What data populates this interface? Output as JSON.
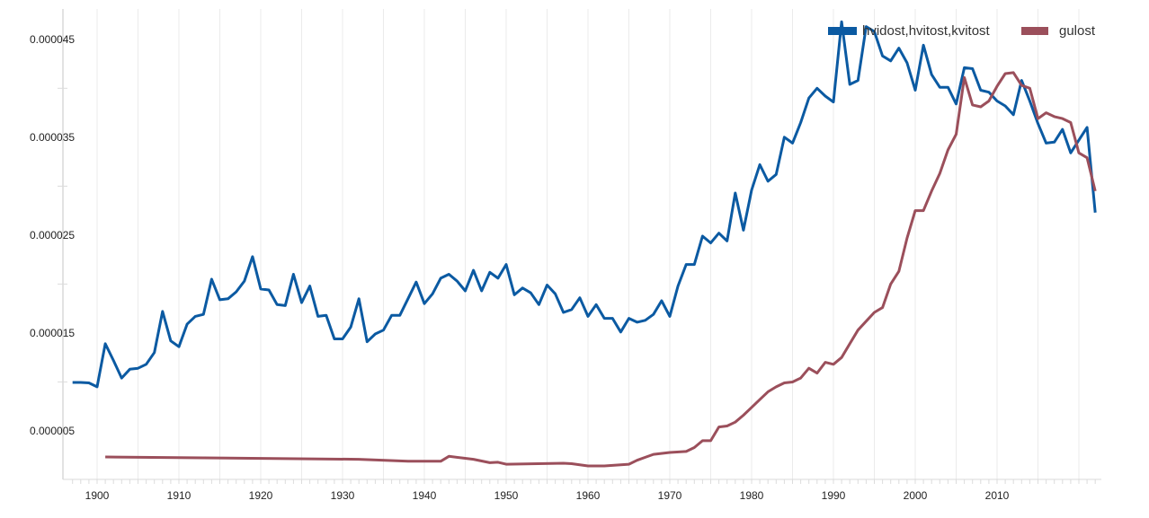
{
  "chart_data": {
    "type": "line",
    "title": "",
    "xlabel": "",
    "ylabel": "",
    "xlim": [
      1897,
      2022
    ],
    "ylim": [
      0,
      4.81e-05
    ],
    "grid": "vertical every 5 years",
    "legend_position": "top-right",
    "y_tick_labels": [
      "0.000005",
      "0.000015",
      "0.000025",
      "0.000035",
      "0.000045"
    ],
    "y_tick_values": [
      5e-06,
      1.5e-05,
      2.5e-05,
      3.5e-05,
      4.5e-05
    ],
    "x_tick_labels": [
      "1900",
      "1910",
      "1920",
      "1930",
      "1940",
      "1950",
      "1960",
      "1970",
      "1980",
      "1990",
      "2000",
      "2010"
    ],
    "x_tick_values": [
      1900,
      1910,
      1920,
      1930,
      1940,
      1950,
      1960,
      1970,
      1980,
      1990,
      2000,
      2010
    ],
    "series": [
      {
        "name": "hvidost,hvitost,kvitost",
        "color": "#0b5aa2",
        "start_year": 1897,
        "values_e6": [
          9.95,
          9.95,
          9.9,
          9.5,
          13.9,
          12.2,
          10.4,
          11.3,
          11.4,
          11.8,
          13.0,
          17.2,
          14.2,
          13.6,
          15.9,
          16.7,
          16.9,
          20.5,
          18.4,
          18.5,
          19.2,
          20.3,
          22.8,
          19.5,
          19.4,
          17.9,
          17.8,
          21.0,
          18.1,
          19.8,
          16.7,
          16.8,
          14.4,
          14.4,
          15.6,
          18.5,
          14.1,
          14.9,
          15.3,
          16.8,
          16.8,
          18.5,
          20.2,
          18.0,
          19.0,
          20.6,
          21.0,
          20.3,
          19.3,
          21.4,
          19.3,
          21.2,
          20.6,
          22.0,
          18.9,
          19.6,
          19.1,
          17.9,
          19.9,
          19.0,
          17.1,
          17.4,
          18.6,
          16.7,
          17.9,
          16.5,
          16.5,
          15.1,
          16.5,
          16.1,
          16.3,
          16.9,
          18.3,
          16.7,
          19.8,
          22.0,
          22.0,
          24.9,
          24.2,
          25.2,
          24.4,
          29.3,
          25.5,
          29.6,
          32.2,
          30.5,
          31.2,
          35.0,
          34.4,
          36.5,
          39.0,
          40.0,
          39.2,
          38.6,
          46.8,
          40.4,
          40.8,
          46.3,
          45.8,
          43.3,
          42.8,
          44.1,
          42.6,
          39.8,
          44.4,
          41.4,
          40.1,
          40.1,
          38.4,
          42.1,
          42.0,
          39.8,
          39.6,
          38.7,
          38.2,
          37.3,
          40.8,
          38.7,
          36.4,
          34.4,
          34.5,
          35.8,
          33.4,
          34.7,
          36.0,
          27.3
        ]
      },
      {
        "name": "gulost",
        "color": "#9b4f5b",
        "points_e6": [
          [
            1901,
            2.34
          ],
          [
            1932,
            2.1
          ],
          [
            1938,
            1.9
          ],
          [
            1942,
            1.9
          ],
          [
            1943,
            2.4
          ],
          [
            1946,
            2.1
          ],
          [
            1948,
            1.75
          ],
          [
            1949,
            1.8
          ],
          [
            1950,
            1.6
          ],
          [
            1957,
            1.7
          ],
          [
            1958,
            1.65
          ],
          [
            1960,
            1.42
          ],
          [
            1962,
            1.42
          ],
          [
            1965,
            1.6
          ],
          [
            1966,
            2.0
          ],
          [
            1967,
            2.3
          ],
          [
            1968,
            2.6
          ],
          [
            1970,
            2.8
          ],
          [
            1972,
            2.9
          ],
          [
            1973,
            3.3
          ],
          [
            1974,
            4.0
          ],
          [
            1975,
            4.0
          ],
          [
            1976,
            5.4
          ],
          [
            1977,
            5.5
          ],
          [
            1978,
            5.9
          ],
          [
            1979,
            6.6
          ],
          [
            1980,
            7.4
          ],
          [
            1981,
            8.2
          ],
          [
            1982,
            9.0
          ],
          [
            1983,
            9.5
          ],
          [
            1984,
            9.9
          ],
          [
            1985,
            10.0
          ],
          [
            1986,
            10.4
          ],
          [
            1987,
            11.4
          ],
          [
            1988,
            10.9
          ],
          [
            1989,
            12.0
          ],
          [
            1990,
            11.8
          ],
          [
            1991,
            12.5
          ],
          [
            1992,
            13.9
          ],
          [
            1993,
            15.3
          ],
          [
            1994,
            16.2
          ],
          [
            1995,
            17.1
          ],
          [
            1996,
            17.6
          ],
          [
            1997,
            20.0
          ],
          [
            1998,
            21.3
          ],
          [
            1999,
            24.7
          ],
          [
            2000,
            27.5
          ],
          [
            2001,
            27.5
          ],
          [
            2002,
            29.5
          ],
          [
            2003,
            31.3
          ],
          [
            2004,
            33.7
          ],
          [
            2005,
            35.3
          ],
          [
            2006,
            41.1
          ],
          [
            2007,
            38.3
          ],
          [
            2008,
            38.1
          ],
          [
            2009,
            38.7
          ],
          [
            2010,
            40.2
          ],
          [
            2011,
            41.5
          ],
          [
            2012,
            41.6
          ],
          [
            2013,
            40.3
          ],
          [
            2014,
            40.0
          ],
          [
            2015,
            36.9
          ],
          [
            2016,
            37.5
          ],
          [
            2017,
            37.1
          ],
          [
            2018,
            36.9
          ],
          [
            2019,
            36.5
          ],
          [
            2020,
            33.4
          ],
          [
            2021,
            32.9
          ],
          [
            2022,
            29.5
          ]
        ]
      }
    ]
  }
}
